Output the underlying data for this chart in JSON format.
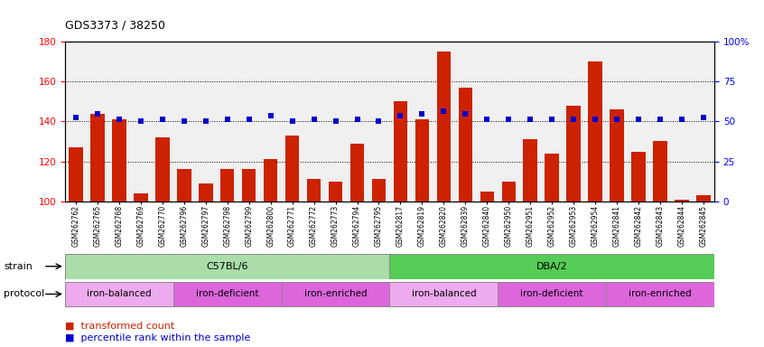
{
  "title": "GDS3373 / 38250",
  "samples": [
    "GSM262762",
    "GSM262765",
    "GSM262768",
    "GSM262769",
    "GSM262770",
    "GSM262796",
    "GSM262797",
    "GSM262798",
    "GSM262799",
    "GSM262800",
    "GSM262771",
    "GSM262772",
    "GSM262773",
    "GSM262794",
    "GSM262795",
    "GSM262817",
    "GSM262819",
    "GSM262820",
    "GSM262839",
    "GSM262840",
    "GSM262950",
    "GSM262951",
    "GSM262952",
    "GSM262953",
    "GSM262954",
    "GSM262841",
    "GSM262842",
    "GSM262843",
    "GSM262844",
    "GSM262845"
  ],
  "bar_values": [
    127,
    144,
    141,
    104,
    132,
    116,
    109,
    116,
    116,
    121,
    133,
    111,
    110,
    129,
    111,
    150,
    141,
    175,
    157,
    105,
    110,
    131,
    124,
    148,
    170,
    146,
    125,
    130,
    101,
    103
  ],
  "dot_values_left": [
    142,
    144,
    141,
    140,
    141,
    140,
    140,
    141,
    141,
    143,
    140,
    141,
    140,
    141,
    140,
    143,
    144,
    145,
    144,
    141,
    141,
    141,
    141,
    141,
    141,
    141,
    141,
    141,
    141,
    142
  ],
  "ylim_left": [
    100,
    180
  ],
  "yticks_left": [
    100,
    120,
    140,
    160,
    180
  ],
  "ylim_right": [
    0,
    100
  ],
  "yticks_right": [
    0,
    25,
    50,
    75,
    100
  ],
  "ytick_right_labels": [
    "0",
    "25",
    "50",
    "75",
    "100%"
  ],
  "bar_color": "#cc2200",
  "dot_color": "#0000cc",
  "strain_groups": [
    {
      "label": "C57BL/6",
      "start": 0,
      "end": 15,
      "color": "#aaddaa"
    },
    {
      "label": "DBA/2",
      "start": 15,
      "end": 30,
      "color": "#55cc55"
    }
  ],
  "protocol_groups": [
    {
      "label": "iron-balanced",
      "start": 0,
      "end": 5,
      "color": "#eeaaee"
    },
    {
      "label": "iron-deficient",
      "start": 5,
      "end": 10,
      "color": "#dd66dd"
    },
    {
      "label": "iron-enriched",
      "start": 10,
      "end": 15,
      "color": "#dd66dd"
    },
    {
      "label": "iron-balanced",
      "start": 15,
      "end": 20,
      "color": "#eeaaee"
    },
    {
      "label": "iron-deficient",
      "start": 20,
      "end": 25,
      "color": "#dd66dd"
    },
    {
      "label": "iron-enriched",
      "start": 25,
      "end": 30,
      "color": "#dd66dd"
    }
  ],
  "bg_color": "#f0f0f0"
}
